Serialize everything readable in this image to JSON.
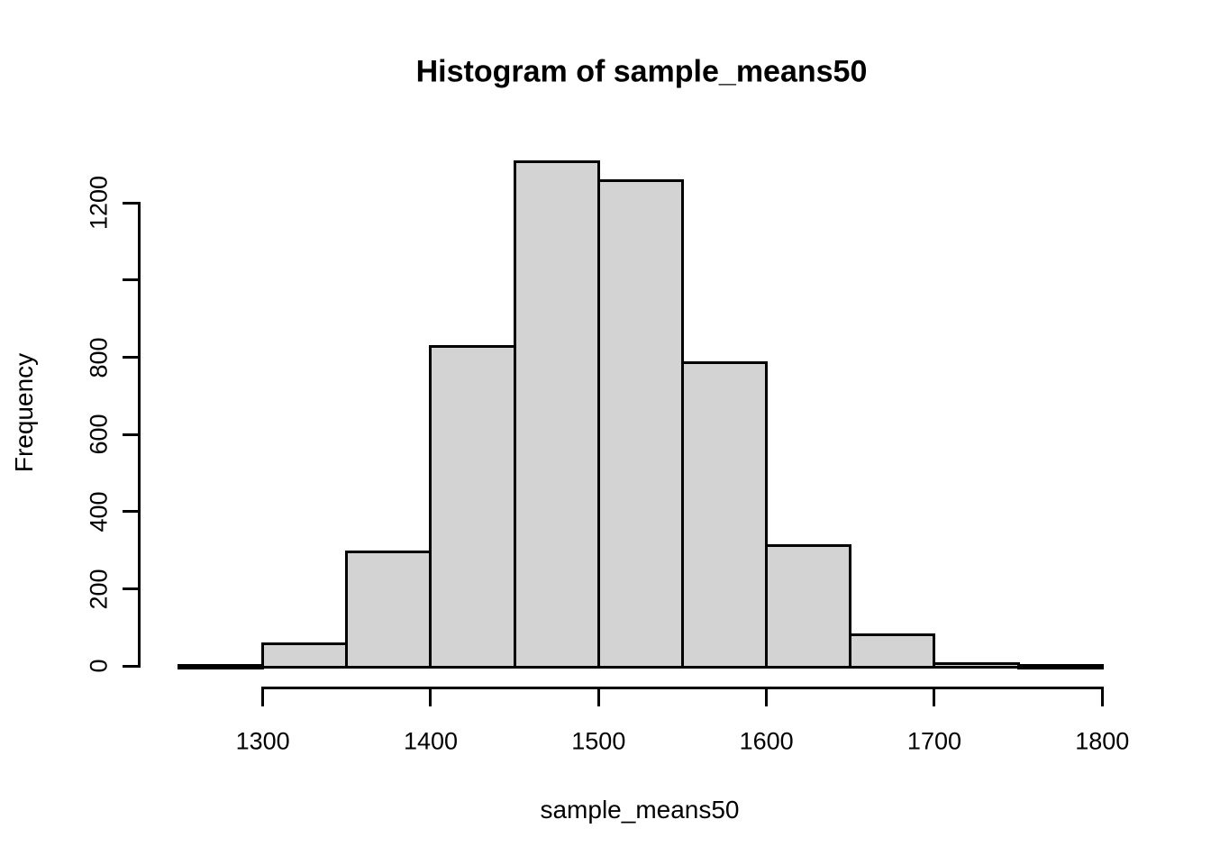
{
  "chart_data": {
    "type": "bar",
    "subtype": "histogram",
    "title": "Histogram of sample_means50",
    "xlabel": "sample_means50",
    "ylabel": "Frequency",
    "bin_width": 50,
    "bin_edges": [
      1250,
      1300,
      1350,
      1400,
      1450,
      1500,
      1550,
      1600,
      1650,
      1700,
      1750,
      1800
    ],
    "values": [
      2,
      60,
      300,
      830,
      1310,
      1260,
      790,
      315,
      85,
      10,
      2
    ],
    "categories": [
      "1250-1300",
      "1300-1350",
      "1350-1400",
      "1400-1450",
      "1450-1500",
      "1500-1550",
      "1550-1600",
      "1600-1650",
      "1650-1700",
      "1700-1750",
      "1750-1800"
    ],
    "x_ticks": [
      1300,
      1400,
      1500,
      1600,
      1700,
      1800
    ],
    "x_tick_labels": [
      "1300",
      "1400",
      "1500",
      "1600",
      "1700",
      "1800"
    ],
    "y_ticks": [
      0,
      200,
      400,
      600,
      800,
      1000,
      1200
    ],
    "y_tick_labels": [
      "0",
      "200",
      "400",
      "600",
      "800",
      "",
      "1200"
    ],
    "xlim": [
      1250,
      1800
    ],
    "ylim": [
      0,
      1200
    ],
    "grid": false,
    "legend": null,
    "bar_fill_color": "#d3d3d3",
    "bar_border_color": "#000000",
    "axis_color": "#000000",
    "background_color": "#ffffff"
  }
}
